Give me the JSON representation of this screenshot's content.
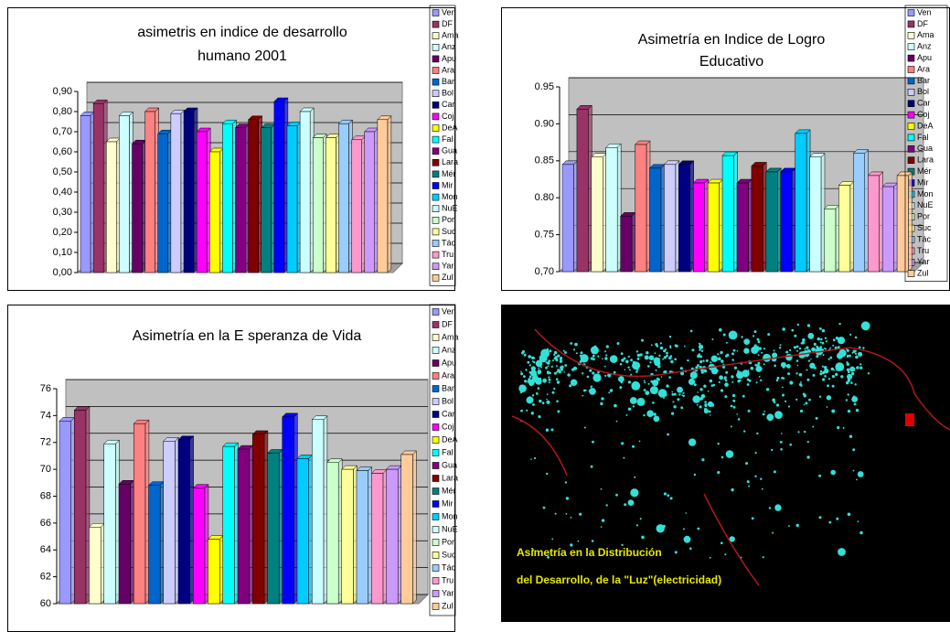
{
  "chart_data": [
    {
      "type": "bar",
      "title": [
        "asimetris en indice de desarrollo",
        "humano 2001"
      ],
      "categories": [
        null
      ],
      "ylim": [
        0,
        0.9
      ],
      "yticks": [
        {
          "value": 0,
          "label": "0,00"
        },
        {
          "value": 0.1,
          "label": "0,10"
        },
        {
          "value": 0.2,
          "label": "0,20"
        },
        {
          "value": 0.3,
          "label": "0,30"
        },
        {
          "value": 0.4,
          "label": "0,40"
        },
        {
          "value": 0.5,
          "label": "0,50"
        },
        {
          "value": 0.6,
          "label": "0,60"
        },
        {
          "value": 0.7,
          "label": "0,70"
        },
        {
          "value": 0.8,
          "label": "0,80"
        },
        {
          "value": 0.9,
          "label": "0,90"
        }
      ],
      "grid": true,
      "series": [
        {
          "name": "Ven",
          "color": "#9999ff",
          "values": [
            0.78
          ]
        },
        {
          "name": "DF",
          "color": "#993366",
          "values": [
            0.84
          ]
        },
        {
          "name": "Ama",
          "color": "#ffffcc",
          "values": [
            0.65
          ]
        },
        {
          "name": "Anz",
          "color": "#ccffff",
          "values": [
            0.78
          ]
        },
        {
          "name": "Apu",
          "color": "#660066",
          "values": [
            0.64
          ]
        },
        {
          "name": "Ara",
          "color": "#ff8080",
          "values": [
            0.8
          ]
        },
        {
          "name": "Bar",
          "color": "#0066cc",
          "values": [
            0.69
          ]
        },
        {
          "name": "Bol",
          "color": "#ccccff",
          "values": [
            0.79
          ]
        },
        {
          "name": "Car",
          "color": "#000080",
          "values": [
            0.8
          ]
        },
        {
          "name": "Coj",
          "color": "#ff00ff",
          "values": [
            0.7
          ]
        },
        {
          "name": "DeA",
          "color": "#ffff00",
          "values": [
            0.6
          ]
        },
        {
          "name": "Fal",
          "color": "#00ffff",
          "values": [
            0.74
          ]
        },
        {
          "name": "Gua",
          "color": "#800080",
          "values": [
            0.72
          ]
        },
        {
          "name": "Lara",
          "color": "#800000",
          "values": [
            0.76
          ]
        },
        {
          "name": "Mér",
          "color": "#008080",
          "values": [
            0.72
          ]
        },
        {
          "name": "Mir",
          "color": "#0000ff",
          "values": [
            0.85
          ]
        },
        {
          "name": "Mon",
          "color": "#00ccff",
          "values": [
            0.73
          ]
        },
        {
          "name": "NuE",
          "color": "#ccffff",
          "values": [
            0.8
          ]
        },
        {
          "name": "Por",
          "color": "#ccffcc",
          "values": [
            0.67
          ]
        },
        {
          "name": "Suc",
          "color": "#ffff99",
          "values": [
            0.67
          ]
        },
        {
          "name": "Tác",
          "color": "#99ccff",
          "values": [
            0.74
          ]
        },
        {
          "name": "Tru",
          "color": "#ff99cc",
          "values": [
            0.66
          ]
        },
        {
          "name": "Yar",
          "color": "#cc99ff",
          "values": [
            0.7
          ]
        },
        {
          "name": "Zul",
          "color": "#ffcc99",
          "values": [
            0.76
          ]
        }
      ]
    },
    {
      "type": "bar",
      "title": [
        "Asimetría en Indice de Logro",
        "Educativo"
      ],
      "categories": [
        null
      ],
      "ylim": [
        0.7,
        0.95
      ],
      "yticks": [
        {
          "value": 0.7,
          "label": "0,70"
        },
        {
          "value": 0.75,
          "label": "0.75"
        },
        {
          "value": 0.8,
          "label": "0.80"
        },
        {
          "value": 0.85,
          "label": "0.85"
        },
        {
          "value": 0.9,
          "label": "0.90"
        },
        0.95
      ],
      "grid": true,
      "series": [
        {
          "name": "Ven",
          "color": "#9999ff",
          "values": [
            0.845
          ]
        },
        {
          "name": "DF",
          "color": "#993366",
          "values": [
            0.92
          ]
        },
        {
          "name": "Ama",
          "color": "#ffffcc",
          "values": [
            0.855
          ]
        },
        {
          "name": "Anz",
          "color": "#ccffff",
          "values": [
            0.868
          ]
        },
        {
          "name": "Apu",
          "color": "#660066",
          "values": [
            0.775
          ]
        },
        {
          "name": "Ara",
          "color": "#ff8080",
          "values": [
            0.872
          ]
        },
        {
          "name": "Bar",
          "color": "#0066cc",
          "values": [
            0.84
          ]
        },
        {
          "name": "Bol",
          "color": "#ccccff",
          "values": [
            0.845
          ]
        },
        {
          "name": "Car",
          "color": "#000080",
          "values": [
            0.845
          ]
        },
        {
          "name": "Coj",
          "color": "#ff00ff",
          "values": [
            0.82
          ]
        },
        {
          "name": "DeA",
          "color": "#ffff00",
          "values": [
            0.82
          ]
        },
        {
          "name": "Fal",
          "color": "#00ffff",
          "values": [
            0.857
          ]
        },
        {
          "name": "Gua",
          "color": "#800080",
          "values": [
            0.82
          ]
        },
        {
          "name": "Lara",
          "color": "#800000",
          "values": [
            0.843
          ]
        },
        {
          "name": "Mér",
          "color": "#008080",
          "values": [
            0.835
          ]
        },
        {
          "name": "Mir",
          "color": "#0000ff",
          "values": [
            0.835
          ]
        },
        {
          "name": "Mon",
          "color": "#00ccff",
          "values": [
            0.887
          ]
        },
        {
          "name": "NuE",
          "color": "#ccffff",
          "values": [
            0.855
          ]
        },
        {
          "name": "Por",
          "color": "#ccffcc",
          "values": [
            0.785
          ]
        },
        {
          "name": "Suc",
          "color": "#ffff99",
          "values": [
            0.817
          ]
        },
        {
          "name": "Tác",
          "color": "#99ccff",
          "values": [
            0.86
          ]
        },
        {
          "name": "Tru",
          "color": "#ff99cc",
          "values": [
            0.83
          ]
        },
        {
          "name": "Yar",
          "color": "#cc99ff",
          "values": [
            0.815
          ]
        },
        {
          "name": "Zul",
          "color": "#ffcc99",
          "values": [
            0.83
          ]
        }
      ]
    },
    {
      "type": "bar",
      "title": [
        "Asimetría en la E speranza de Vida"
      ],
      "categories": [
        null
      ],
      "ylim": [
        60,
        76
      ],
      "yticks": [
        60,
        62,
        64,
        66,
        68,
        70,
        72,
        74,
        76
      ],
      "grid": true,
      "series": [
        {
          "name": "Ven",
          "color": "#9999ff",
          "values": [
            73.6
          ]
        },
        {
          "name": "DF",
          "color": "#993366",
          "values": [
            74.4
          ]
        },
        {
          "name": "Ama",
          "color": "#ffffcc",
          "values": [
            65.7
          ]
        },
        {
          "name": "Anz",
          "color": "#ccffff",
          "values": [
            71.9
          ]
        },
        {
          "name": "Apu",
          "color": "#660066",
          "values": [
            68.9
          ]
        },
        {
          "name": "Ara",
          "color": "#ff8080",
          "values": [
            73.4
          ]
        },
        {
          "name": "Bar",
          "color": "#0066cc",
          "values": [
            68.8
          ]
        },
        {
          "name": "Bol",
          "color": "#ccccff",
          "values": [
            72.1
          ]
        },
        {
          "name": "Car",
          "color": "#000080",
          "values": [
            72.2
          ]
        },
        {
          "name": "Coj",
          "color": "#ff00ff",
          "values": [
            68.6
          ]
        },
        {
          "name": "DeA",
          "color": "#ffff00",
          "values": [
            64.8
          ]
        },
        {
          "name": "Fal",
          "color": "#00ffff",
          "values": [
            71.7
          ]
        },
        {
          "name": "Gua",
          "color": "#800080",
          "values": [
            71.5
          ]
        },
        {
          "name": "Lara",
          "color": "#800000",
          "values": [
            72.6
          ]
        },
        {
          "name": "Mér",
          "color": "#008080",
          "values": [
            71.2
          ]
        },
        {
          "name": "Mir",
          "color": "#0000ff",
          "values": [
            73.9
          ]
        },
        {
          "name": "Mon",
          "color": "#00ccff",
          "values": [
            70.8
          ]
        },
        {
          "name": "NuE",
          "color": "#ccffff",
          "values": [
            73.7
          ]
        },
        {
          "name": "Por",
          "color": "#ccffcc",
          "values": [
            70.5
          ]
        },
        {
          "name": "Suc",
          "color": "#ffff99",
          "values": [
            70.0
          ]
        },
        {
          "name": "Tác",
          "color": "#99ccff",
          "values": [
            69.9
          ]
        },
        {
          "name": "Tru",
          "color": "#ff99cc",
          "values": [
            69.7
          ]
        },
        {
          "name": "Yar",
          "color": "#cc99ff",
          "values": [
            70.0
          ]
        },
        {
          "name": "Zul",
          "color": "#ffcc99",
          "values": [
            71.1
          ]
        }
      ]
    }
  ],
  "map_panel": {
    "caption": [
      "Asimetría en la Distribución",
      "del Desarrollo, de la \"Luz\"(electricidad)"
    ]
  }
}
